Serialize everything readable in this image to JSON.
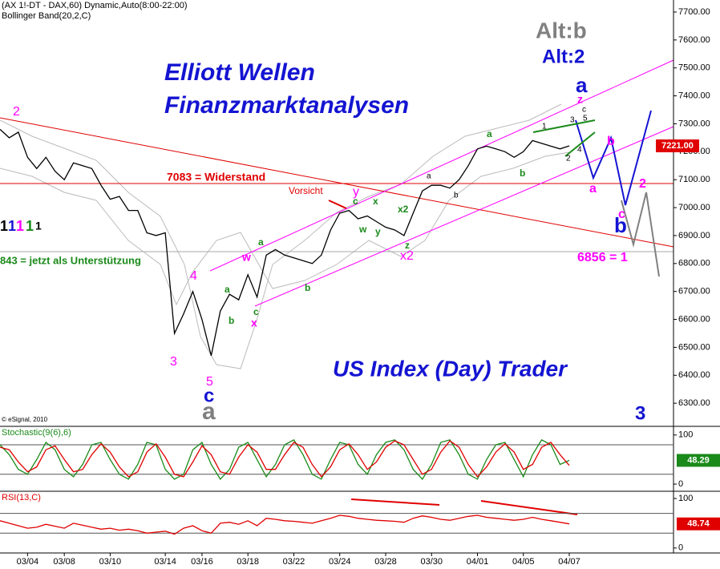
{
  "chart_data": [
    {
      "type": "line",
      "title": "(AX 1!-DT - DAX,60) Dynamic,Auto(8:00-22:00)",
      "subtitle": "Bollinger Band(20,2,C)",
      "categories": [
        null,
        null,
        null,
        "03/04",
        null,
        null,
        null,
        "03/08",
        null,
        null,
        null,
        null,
        "03/10",
        null,
        null,
        null,
        null,
        null,
        "03/14",
        null,
        null,
        null,
        "03/16",
        null,
        null,
        null,
        null,
        "03/18",
        null,
        null,
        null,
        null,
        "03/22",
        null,
        null,
        null,
        null,
        "03/24",
        null,
        null,
        null,
        null,
        "03/28",
        null,
        null,
        null,
        null,
        "03/30",
        null,
        null,
        null,
        null,
        "04/01",
        null,
        null,
        null,
        null,
        "04/05",
        null,
        null,
        null,
        null,
        "04/07"
      ],
      "series": [
        {
          "color": "#000000",
          "values": [
            7280,
            7250,
            7270,
            7180,
            7140,
            7180,
            7130,
            7100,
            7160,
            7150,
            7140,
            7080,
            7030,
            7040,
            6990,
            6990,
            6910,
            6900,
            6910,
            6550,
            6620,
            6700,
            6600,
            6470,
            6630,
            6690,
            6670,
            6760,
            6680,
            6830,
            6850,
            6830,
            6820,
            6810,
            6800,
            6830,
            6920,
            6980,
            6990,
            6960,
            6970,
            6950,
            6930,
            6920,
            6900,
            6980,
            7060,
            7080,
            7080,
            7070,
            7100,
            7150,
            7210,
            7220,
            7210,
            7200,
            7180,
            7200,
            7240,
            7230,
            7220,
            7210,
            7221
          ]
        }
      ],
      "last_value": {
        "value": 7221,
        "label": "7221.00"
      },
      "ylim": [
        6223,
        7743
      ],
      "yticks": [
        {
          "value": 6300,
          "label": "6300.00"
        },
        {
          "value": 6400,
          "label": "6400.00"
        },
        {
          "value": 6500,
          "label": "6500.00"
        },
        {
          "value": 6600,
          "label": "6600.00"
        },
        {
          "value": 6700,
          "label": "6700.00"
        },
        {
          "value": 6800,
          "label": "6800.00"
        },
        {
          "value": 6900,
          "label": "6900.00"
        },
        {
          "value": 7000,
          "label": "7000.00"
        },
        {
          "value": 7100,
          "label": "7100.00"
        },
        {
          "value": 7200,
          "label": "7200.00"
        },
        {
          "value": 7300,
          "label": "7300.00"
        },
        {
          "value": 7400,
          "label": "7400.00"
        },
        {
          "value": 7500,
          "label": "7500.00"
        },
        {
          "value": 7600,
          "label": "7600.00"
        },
        {
          "value": 7700,
          "label": "7700.00"
        }
      ],
      "annotations": [
        {
          "text": "Elliott Wellen",
          "color": "#1414d2"
        },
        {
          "text": "Finanzmarktanalysen",
          "color": "#1414d2"
        },
        {
          "text": "US Index (Day) Trader",
          "color": "#1414d2"
        },
        {
          "text": "Alt:b",
          "color": "#808080"
        },
        {
          "text": "Alt:2",
          "color": "#1414d2"
        },
        {
          "text": "7083 = Widerstand",
          "color": "#e00000"
        },
        {
          "text": "843 = jetzt als Unterstützung",
          "color": "#1a8a1a"
        },
        {
          "text": "6856 = 1",
          "color": "#ff00ff"
        },
        {
          "text": "Vorsicht",
          "color": "#e00000"
        },
        {
          "text": "© eSignal, 2010",
          "color": "#000000"
        },
        {
          "text": "3",
          "color": "#1414d2"
        },
        {
          "text": "2",
          "color": "#ff00ff"
        },
        {
          "text": "4",
          "color": "#ff00ff"
        },
        {
          "text": "3",
          "color": "#ff00ff"
        },
        {
          "text": "5",
          "color": "#ff00ff"
        },
        {
          "text": "c",
          "color": "#1414d2"
        },
        {
          "text": "a",
          "color": "#808080"
        },
        {
          "text": "w",
          "color": "#ff00ff"
        },
        {
          "text": "x",
          "color": "#ff00ff"
        },
        {
          "text": "y",
          "color": "#ff00ff"
        },
        {
          "text": "x2",
          "color": "#ff00ff"
        },
        {
          "text": "a",
          "color": "#1414d2"
        },
        {
          "text": "z",
          "color": "#ff00ff"
        },
        {
          "text": "a",
          "color": "#ff00ff"
        },
        {
          "text": "b",
          "color": "#ff00ff"
        },
        {
          "text": "c",
          "color": "#ff00ff"
        },
        {
          "text": "b",
          "color": "#1414d2"
        },
        {
          "text": "2",
          "color": "#ff00ff"
        },
        {
          "text": "1",
          "color": "#000000"
        },
        {
          "text": "1",
          "color": "#1414d2"
        },
        {
          "text": "1",
          "color": "#ff00ff"
        },
        {
          "text": "1",
          "color": "#1a8a1a"
        },
        {
          "text": "1",
          "color": "#000000"
        },
        {
          "text": "a",
          "color": "#1a8a1a"
        },
        {
          "text": "a",
          "color": "#1a8a1a"
        },
        {
          "text": "b",
          "color": "#1a8a1a"
        },
        {
          "text": "c",
          "color": "#1a8a1a"
        },
        {
          "text": "b",
          "color": "#1a8a1a"
        },
        {
          "text": "c",
          "color": "#1a8a1a"
        },
        {
          "text": "x",
          "color": "#1a8a1a"
        },
        {
          "text": "w",
          "color": "#1a8a1a"
        },
        {
          "text": "y",
          "color": "#1a8a1a"
        },
        {
          "text": "x2",
          "color": "#1a8a1a"
        },
        {
          "text": "z",
          "color": "#1a8a1a"
        },
        {
          "text": "a",
          "color": "#1a8a1a"
        },
        {
          "text": "b",
          "color": "#1a8a1a"
        },
        {
          "text": "a",
          "color": "#000000"
        },
        {
          "text": "b",
          "color": "#000000"
        },
        {
          "text": "1",
          "color": "#000000"
        },
        {
          "text": "3",
          "color": "#000000"
        },
        {
          "text": "5",
          "color": "#000000"
        },
        {
          "text": "c",
          "color": "#000000"
        },
        {
          "text": "2",
          "color": "#000000"
        },
        {
          "text": "4",
          "color": "#000000"
        }
      ]
    },
    {
      "type": "line",
      "title": "Stochastic(9(6),6)",
      "series": [
        {
          "color": "#1a8a1a",
          "values": [
            80,
            60,
            30,
            20,
            50,
            85,
            70,
            30,
            15,
            40,
            80,
            85,
            50,
            20,
            10,
            40,
            85,
            80,
            30,
            10,
            20,
            70,
            85,
            40,
            10,
            30,
            75,
            85,
            50,
            15,
            40,
            80,
            90,
            60,
            20,
            10,
            50,
            85,
            80,
            40,
            20,
            60,
            85,
            90,
            70,
            30,
            10,
            40,
            85,
            90,
            60,
            20,
            10,
            50,
            80,
            85,
            50,
            15,
            60,
            90,
            80,
            40,
            48.29
          ]
        },
        {
          "color": "#e00000",
          "values": [
            75,
            70,
            45,
            25,
            35,
            70,
            78,
            50,
            25,
            30,
            60,
            82,
            65,
            35,
            15,
            25,
            65,
            82,
            55,
            20,
            15,
            45,
            78,
            60,
            25,
            20,
            55,
            80,
            65,
            30,
            30,
            60,
            85,
            75,
            40,
            15,
            35,
            70,
            82,
            60,
            30,
            45,
            75,
            88,
            80,
            50,
            20,
            30,
            65,
            88,
            75,
            40,
            15,
            35,
            65,
            82,
            65,
            30,
            40,
            75,
            85,
            60,
            38
          ]
        }
      ],
      "last_value": {
        "value": 48.29,
        "label": "48.29"
      },
      "ylim": [
        -13,
        116
      ],
      "yticks": [
        0,
        100
      ],
      "ref_lines": [
        20,
        80
      ]
    },
    {
      "type": "line",
      "title": "RSI(13,C)",
      "series": [
        {
          "color": "#e00000",
          "values": [
            55,
            50,
            45,
            40,
            42,
            48,
            44,
            40,
            50,
            46,
            42,
            38,
            40,
            36,
            38,
            35,
            30,
            32,
            34,
            28,
            40,
            45,
            35,
            30,
            50,
            52,
            48,
            55,
            45,
            60,
            58,
            55,
            54,
            52,
            50,
            55,
            60,
            66,
            64,
            60,
            58,
            56,
            55,
            54,
            52,
            60,
            65,
            62,
            58,
            56,
            60,
            64,
            66,
            62,
            60,
            58,
            56,
            58,
            62,
            58,
            55,
            52,
            48.74
          ]
        }
      ],
      "last_value": {
        "value": 48.74,
        "label": "48.74"
      },
      "ylim": [
        -10,
        113
      ],
      "yticks": [
        0,
        100
      ],
      "ref_lines": [
        30,
        70
      ]
    }
  ]
}
